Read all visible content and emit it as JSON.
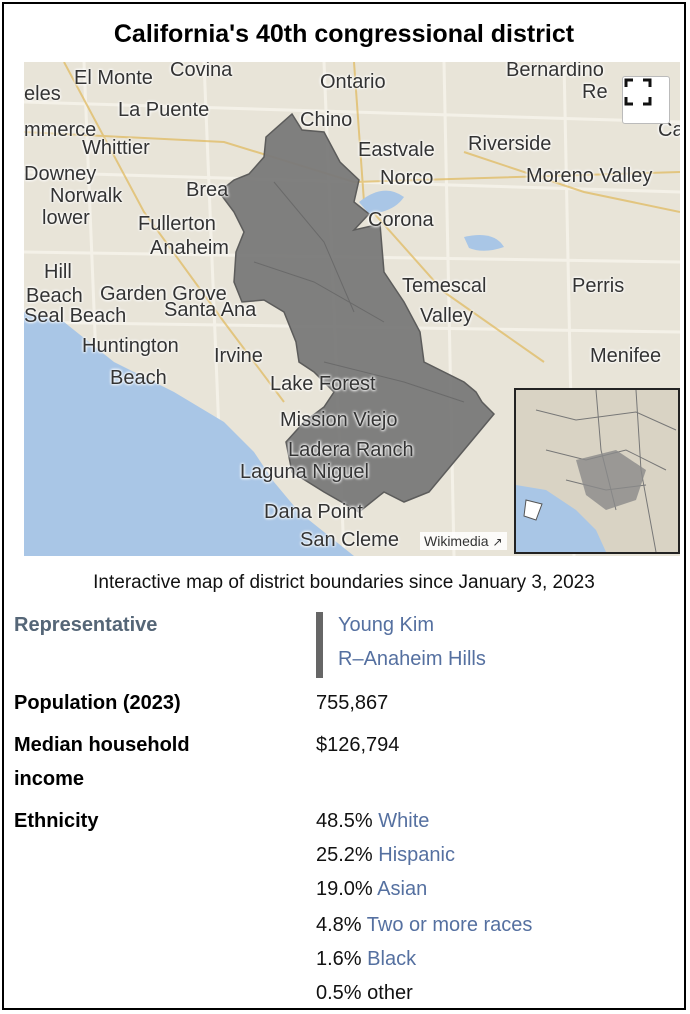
{
  "infobox": {
    "title": "California's 40th congressional district",
    "caption": "Interactive map of district boundaries since January 3, 2023"
  },
  "map": {
    "labels": [
      "El Monte",
      "Covina",
      "Ontario",
      "Bernardino",
      "eles",
      "La Puente",
      "Chino",
      "Re",
      "Ca",
      "mmerce",
      "Whittier",
      "Eastvale",
      "Riverside",
      "Downey",
      "Norwalk",
      "Brea",
      "Norco",
      "Moreno Valley",
      "lower",
      "Fullerton",
      "Corona",
      "Anaheim",
      "Hill",
      "Temescal",
      "Perris",
      "Beach",
      "Garden Grove",
      "Valley",
      "Seal Beach",
      "Santa Ana",
      "Huntington",
      "Irvine",
      "Menifee",
      "Beach",
      "Lake Forest",
      "Mission Viejo",
      "Ladera Ranch",
      "Laguna Niguel",
      "Dana Point",
      "San Cleme"
    ],
    "attribution": "Wikimedia",
    "fullscreen_icon": "fullscreen-icon",
    "colors": {
      "district": "#7a7a7a",
      "water": "#a9c6e6",
      "land": "#e8e4d8"
    }
  },
  "representative": {
    "label": "Representative",
    "name": "Young Kim",
    "party_home": "R–Anaheim Hills"
  },
  "population": {
    "label": "Population (2023)",
    "value": "755,867"
  },
  "income": {
    "label_line1": "Median household",
    "label_line2": "income",
    "value": "$126,794"
  },
  "ethnicity": {
    "label": "Ethnicity",
    "items": [
      {
        "pct": "48.5%",
        "name": "White"
      },
      {
        "pct": "25.2%",
        "name": "Hispanic"
      },
      {
        "pct": "19.0%",
        "name": "Asian"
      },
      {
        "pct": "4.8%",
        "name": "Two or more races"
      },
      {
        "pct": "1.6%",
        "name": "Black"
      },
      {
        "pct": "0.5%",
        "name": "other"
      }
    ]
  }
}
